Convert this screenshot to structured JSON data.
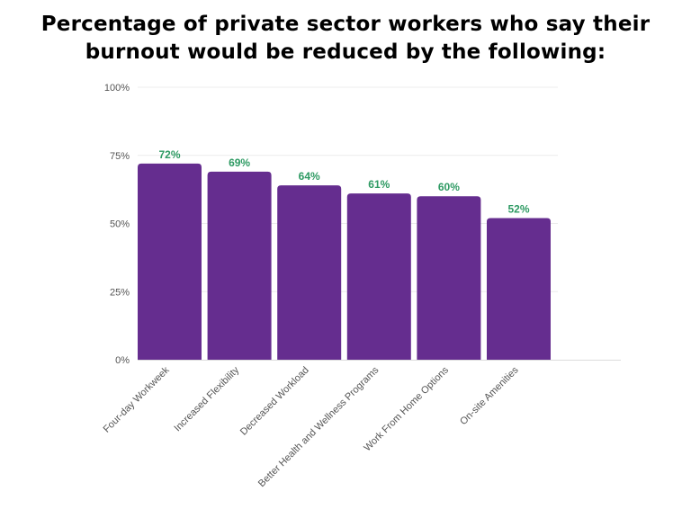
{
  "chart_data": {
    "type": "bar",
    "title": "Percentage of private sector workers who say their burnout would be reduced by the following:",
    "categories": [
      "Four-day Workweek",
      "Increased Flexibility",
      "Decreased Workload",
      "Better Health and Wellness Programs",
      "Work From Home Options",
      "On-site Amenities"
    ],
    "values": [
      72,
      69,
      64,
      61,
      60,
      52
    ],
    "data_labels": [
      "72%",
      "69%",
      "64%",
      "61%",
      "60%",
      "52%"
    ],
    "y_ticks": [
      "0%",
      "25%",
      "50%",
      "75%",
      "100%"
    ],
    "y_tick_values": [
      0,
      25,
      50,
      75,
      100
    ],
    "ylim": [
      0,
      100
    ],
    "xlabel": "",
    "ylabel": "",
    "grid": true,
    "colors": {
      "bar": "#652d8f",
      "data_label": "#2e9a63",
      "grid": "#ececec",
      "tick_label": "#555555"
    }
  }
}
